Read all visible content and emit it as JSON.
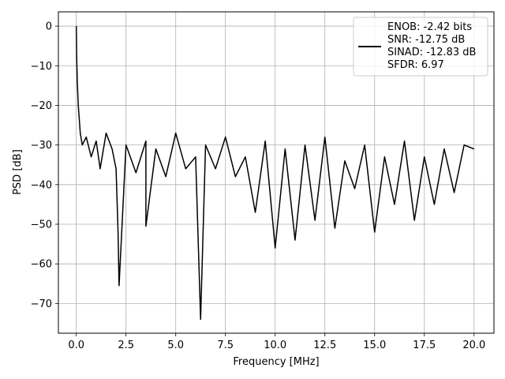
{
  "chart_data": {
    "type": "line",
    "title": "",
    "xlabel": "Frequency [MHz]",
    "ylabel": "PSD [dB]",
    "xlim": [
      -0.9,
      21.0
    ],
    "ylim": [
      -77.5,
      3.6
    ],
    "xticks": [
      0.0,
      2.5,
      5.0,
      7.5,
      10.0,
      12.5,
      15.0,
      17.5,
      20.0
    ],
    "xtick_labels": [
      "0.0",
      "2.5",
      "5.0",
      "7.5",
      "10.0",
      "12.5",
      "15.0",
      "17.5",
      "20.0"
    ],
    "yticks": [
      0,
      -10,
      -20,
      -30,
      -40,
      -50,
      -60,
      -70
    ],
    "ytick_labels": [
      "0",
      "−10",
      "−20",
      "−30",
      "−40",
      "−50",
      "−60",
      "−70"
    ],
    "grid": true,
    "legend_position": "top-right",
    "colors": {
      "line": "#000000",
      "grid": "#b0b0b0"
    },
    "series": [
      {
        "name": "ENOB: -2.42 bits\nSNR: -12.75 dB\nSINAD: -12.83 dB\nSFDR: 6.97",
        "legend_lines": [
          "ENOB: -2.42 bits",
          "SNR: -12.75 dB",
          "SINAD: -12.83 dB",
          "SFDR: 6.97"
        ],
        "x": [
          0.0,
          0.02,
          0.05,
          0.1,
          0.2,
          0.3,
          0.5,
          0.75,
          1.0,
          1.2,
          1.5,
          1.8,
          2.0,
          2.1,
          2.15,
          2.5,
          3.0,
          3.5,
          3.5,
          4.0,
          4.5,
          5.0,
          5.5,
          6.0,
          6.25,
          6.5,
          7.0,
          7.5,
          8.0,
          8.5,
          9.0,
          9.5,
          10.0,
          10.5,
          11.0,
          11.5,
          12.0,
          12.5,
          13.0,
          13.5,
          14.0,
          14.5,
          15.0,
          15.5,
          16.0,
          16.5,
          17.0,
          17.5,
          18.0,
          18.5,
          19.0,
          19.5,
          20.0
        ],
        "y": [
          0.0,
          -8.0,
          -14.0,
          -20.0,
          -27.0,
          -30.0,
          -28.0,
          -33.0,
          -29.0,
          -36.0,
          -27.0,
          -31.0,
          -36.0,
          -52.0,
          -65.5,
          -30.0,
          -37.0,
          -29.0,
          -50.5,
          -31.0,
          -38.0,
          -27.0,
          -36.0,
          -33.0,
          -74.0,
          -30.0,
          -36.0,
          -28.0,
          -38.0,
          -33.0,
          -47.0,
          -29.0,
          -56.0,
          -31.0,
          -54.0,
          -30.0,
          -49.0,
          -28.0,
          -51.0,
          -34.0,
          -41.0,
          -30.0,
          -52.0,
          -33.0,
          -45.0,
          -29.0,
          -49.0,
          -33.0,
          -45.0,
          -31.0,
          -42.0,
          -30.0,
          -31.0
        ]
      }
    ]
  }
}
